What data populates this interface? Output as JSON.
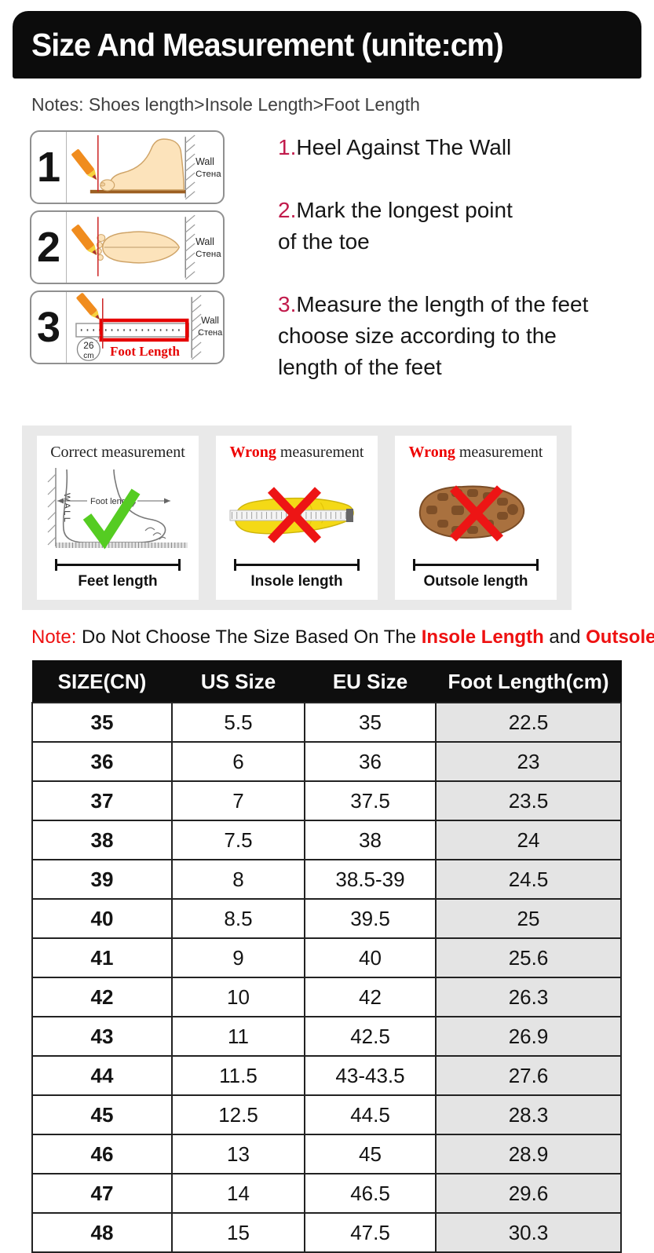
{
  "header": {
    "title": "Size And Measurement (unite:cm)"
  },
  "notes": "Notes: Shoes length>Insole Length>Foot Length",
  "steps": [
    {
      "number": "1",
      "wall_en": "Wall",
      "wall_ru": "Стена"
    },
    {
      "number": "2",
      "wall_en": "Wall",
      "wall_ru": "Стена"
    },
    {
      "number": "3",
      "wall_en": "Wall",
      "wall_ru": "Стена",
      "mark_value": "26",
      "mark_unit": "cm",
      "label": "Foot Length"
    }
  ],
  "instructions": [
    {
      "number": "1.",
      "lines": [
        "Heel Against The Wall"
      ]
    },
    {
      "number": "2.",
      "lines": [
        "Mark the longest point",
        "of the toe"
      ]
    },
    {
      "number": "3.",
      "lines": [
        "Measure the length of the feet",
        "choose size according to the",
        "length of the feet"
      ]
    }
  ],
  "cards": [
    {
      "title_accent": "Correct",
      "title_rest": " measurement",
      "wall_text": "WALL",
      "annotation": "Foot length",
      "label": "Feet length"
    },
    {
      "title_accent": "Wrong",
      "title_rest": " measurement",
      "label": "Insole length"
    },
    {
      "title_accent": "Wrong",
      "title_rest": " measurement",
      "label": "Outsole length"
    }
  ],
  "note": {
    "prefix": "Note:",
    "body": " Do Not Choose The Size Based On The ",
    "highlight_insole": "Insole Length",
    "conjunction": " and ",
    "highlight_outsole": "Outsole Length",
    "suffix": "!"
  },
  "size_table": {
    "headers": [
      "SIZE(CN)",
      "US Size",
      "EU Size",
      "Foot Length(cm)"
    ],
    "rows": [
      [
        "35",
        "5.5",
        "35",
        "22.5"
      ],
      [
        "36",
        "6",
        "36",
        "23"
      ],
      [
        "37",
        "7",
        "37.5",
        "23.5"
      ],
      [
        "38",
        "7.5",
        "38",
        "24"
      ],
      [
        "39",
        "8",
        "38.5-39",
        "24.5"
      ],
      [
        "40",
        "8.5",
        "39.5",
        "25"
      ],
      [
        "41",
        "9",
        "40",
        "25.6"
      ],
      [
        "42",
        "10",
        "42",
        "26.3"
      ],
      [
        "43",
        "11",
        "42.5",
        "26.9"
      ],
      [
        "44",
        "11.5",
        "43-43.5",
        "27.6"
      ],
      [
        "45",
        "12.5",
        "44.5",
        "28.3"
      ],
      [
        "46",
        "13",
        "45",
        "28.9"
      ],
      [
        "47",
        "14",
        "46.5",
        "29.6"
      ],
      [
        "48",
        "15",
        "47.5",
        "30.3"
      ]
    ]
  },
  "colors": {
    "banner_bg": "#0c0c0c",
    "instruction_number": "#c11a4b",
    "wrong_red": "#ee0000",
    "foot_length_red": "#e60000",
    "green_check": "#55cc22",
    "strip_bg": "#e9e9e9",
    "foot_col_bg": "#e4e4e4",
    "table_header_bg": "#0e0e0e"
  }
}
